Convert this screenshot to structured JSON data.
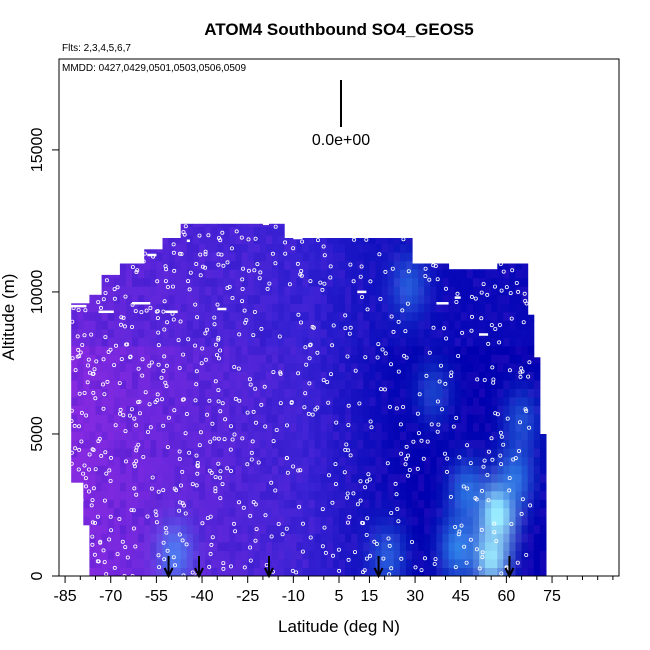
{
  "chart_data": {
    "type": "heatmap",
    "title": "ATOM4 Southbound SO4_GEOS5",
    "subtitle_flights": "Flts: 2,3,4,5,6,7",
    "subtitle_dates": "MMDD: 0427,0429,0501,0503,0506,0509",
    "xlabel": "Latitude (deg N)",
    "ylabel": "Altitude (m)",
    "x_ticks": [
      -85,
      -70,
      -55,
      -40,
      -25,
      -10,
      5,
      15,
      30,
      45,
      60,
      75
    ],
    "y_ticks": [
      0,
      5000,
      10000,
      15000
    ],
    "xlim": [
      -87,
      97
    ],
    "ylim": [
      0,
      18200
    ],
    "scale_bar_label": "0.0e+00",
    "arrow_latitudes": [
      -51,
      -41,
      -18,
      18,
      61
    ],
    "curtain_top_altitudes": [
      {
        "lat": -84,
        "alt": 9600
      },
      {
        "lat": -78,
        "alt": 9900
      },
      {
        "lat": -73,
        "alt": 10600
      },
      {
        "lat": -67,
        "alt": 11000
      },
      {
        "lat": -60,
        "alt": 11500
      },
      {
        "lat": -53,
        "alt": 11900
      },
      {
        "lat": -47,
        "alt": 12400
      },
      {
        "lat": -20,
        "alt": 12400
      },
      {
        "lat": -14,
        "alt": 11900
      },
      {
        "lat": 26,
        "alt": 11900
      },
      {
        "lat": 28,
        "alt": 11000
      },
      {
        "lat": 40,
        "alt": 10800
      },
      {
        "lat": 56,
        "alt": 11000
      },
      {
        "lat": 65,
        "alt": 11000
      },
      {
        "lat": 67,
        "alt": 9200
      },
      {
        "lat": 69,
        "alt": 7700
      },
      {
        "lat": 70,
        "alt": 5000
      },
      {
        "lat": 72,
        "alt": 3000
      },
      {
        "lat": 72,
        "alt": 0
      }
    ],
    "curtain_bottom": [
      {
        "lat": -84,
        "alt": 3500
      },
      {
        "lat": -80,
        "alt": 2000
      },
      {
        "lat": -77,
        "alt": 0
      }
    ],
    "bright_regions": [
      {
        "lat": 57,
        "alt": 2200,
        "intensity": 0.9
      },
      {
        "lat": 55,
        "alt": 700,
        "intensity": 0.8
      },
      {
        "lat": 44,
        "alt": 1000,
        "intensity": 0.6
      },
      {
        "lat": 47,
        "alt": 3000,
        "intensity": 0.5
      },
      {
        "lat": 63,
        "alt": 3500,
        "intensity": 0.5
      },
      {
        "lat": -49,
        "alt": 800,
        "intensity": 0.5
      },
      {
        "lat": 28,
        "alt": 10200,
        "intensity": 0.4
      },
      {
        "lat": 21,
        "alt": 700,
        "intensity": 0.4
      },
      {
        "lat": 65,
        "alt": 5500,
        "intensity": 0.35
      },
      {
        "lat": 36,
        "alt": 6500,
        "intensity": 0.3
      }
    ],
    "grid": false,
    "legend": "none",
    "colors": {
      "purple": "#8a2be2",
      "blue": "#2020d0",
      "dark_blue": "#0000b0",
      "light_blue": "#40b0ff",
      "cyan": "#a0f0ff",
      "track": "#ffffff"
    }
  }
}
